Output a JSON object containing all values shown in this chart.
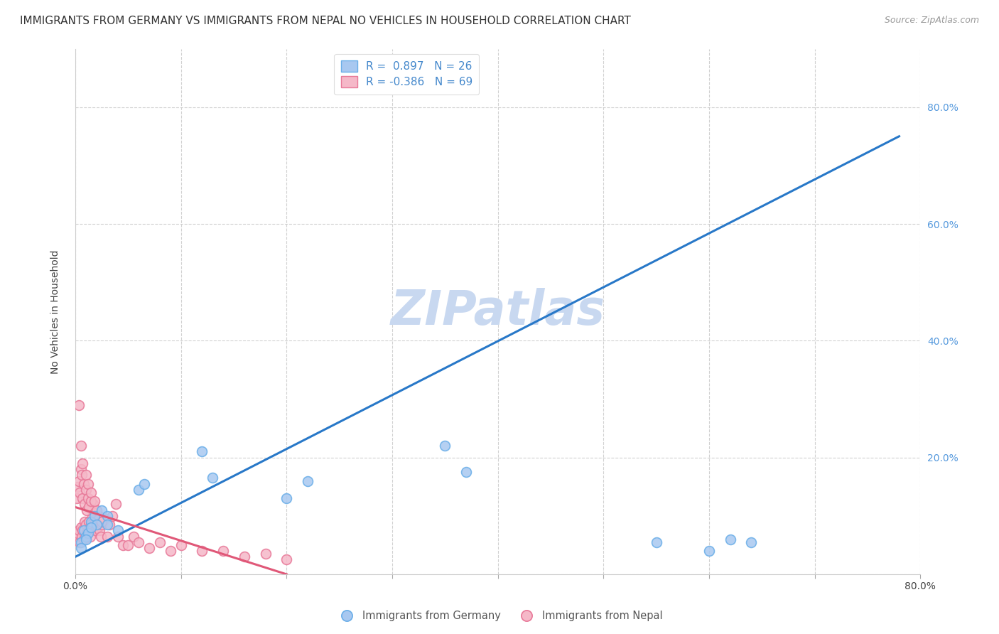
{
  "title": "IMMIGRANTS FROM GERMANY VS IMMIGRANTS FROM NEPAL NO VEHICLES IN HOUSEHOLD CORRELATION CHART",
  "source": "Source: ZipAtlas.com",
  "ylabel": "No Vehicles in Household",
  "xlim": [
    0.0,
    0.8
  ],
  "ylim": [
    0.0,
    0.9
  ],
  "xtick_pos": [
    0.0,
    0.1,
    0.2,
    0.3,
    0.4,
    0.5,
    0.6,
    0.7,
    0.8
  ],
  "xticklabels": [
    "0.0%",
    "",
    "",
    "",
    "",
    "",
    "",
    "",
    "80.0%"
  ],
  "ytick_pos": [
    0.0,
    0.2,
    0.4,
    0.6,
    0.8
  ],
  "yticklabels": [
    "",
    "20.0%",
    "40.0%",
    "60.0%",
    "80.0%"
  ],
  "germany_color": "#a8c8f0",
  "germany_edge": "#6aaee8",
  "nepal_color": "#f5b8c8",
  "nepal_edge": "#e87898",
  "trend_germany_color": "#2878c8",
  "trend_nepal_color": "#e05878",
  "R_germany": 0.897,
  "N_germany": 26,
  "R_nepal": -0.386,
  "N_nepal": 69,
  "legend_label_germany": "Immigrants from Germany",
  "legend_label_nepal": "Immigrants from Nepal",
  "watermark": "ZIPatlas",
  "watermark_color": "#c8d8f0",
  "germany_x": [
    0.005,
    0.008,
    0.01,
    0.012,
    0.015,
    0.018,
    0.02,
    0.025,
    0.03,
    0.06,
    0.065,
    0.12,
    0.13,
    0.2,
    0.22,
    0.35,
    0.37,
    0.55,
    0.6,
    0.62,
    0.64,
    0.005,
    0.01,
    0.015,
    0.03,
    0.04
  ],
  "germany_y": [
    0.055,
    0.075,
    0.065,
    0.07,
    0.09,
    0.1,
    0.085,
    0.11,
    0.1,
    0.145,
    0.155,
    0.21,
    0.165,
    0.13,
    0.16,
    0.22,
    0.175,
    0.055,
    0.04,
    0.06,
    0.055,
    0.045,
    0.06,
    0.08,
    0.085,
    0.075
  ],
  "nepal_x": [
    0.001,
    0.002,
    0.003,
    0.004,
    0.005,
    0.006,
    0.007,
    0.008,
    0.009,
    0.01,
    0.011,
    0.012,
    0.013,
    0.014,
    0.015,
    0.016,
    0.017,
    0.018,
    0.019,
    0.02,
    0.021,
    0.022,
    0.023,
    0.024,
    0.025,
    0.028,
    0.03,
    0.032,
    0.035,
    0.038,
    0.04,
    0.045,
    0.05,
    0.055,
    0.06,
    0.07,
    0.08,
    0.09,
    0.1,
    0.12,
    0.14,
    0.16,
    0.18,
    0.2,
    0.001,
    0.002,
    0.003,
    0.004,
    0.005,
    0.006,
    0.007,
    0.008,
    0.009,
    0.01,
    0.011,
    0.012,
    0.013,
    0.015,
    0.018,
    0.02,
    0.022,
    0.025,
    0.003,
    0.005,
    0.007,
    0.01,
    0.012,
    0.015,
    0.018
  ],
  "nepal_y": [
    0.065,
    0.07,
    0.075,
    0.055,
    0.08,
    0.065,
    0.075,
    0.06,
    0.09,
    0.085,
    0.07,
    0.075,
    0.09,
    0.065,
    0.085,
    0.1,
    0.12,
    0.095,
    0.075,
    0.085,
    0.08,
    0.1,
    0.075,
    0.065,
    0.085,
    0.095,
    0.065,
    0.085,
    0.1,
    0.12,
    0.065,
    0.05,
    0.05,
    0.065,
    0.055,
    0.045,
    0.055,
    0.04,
    0.05,
    0.04,
    0.04,
    0.03,
    0.035,
    0.025,
    0.13,
    0.15,
    0.16,
    0.14,
    0.18,
    0.17,
    0.13,
    0.155,
    0.12,
    0.145,
    0.11,
    0.13,
    0.115,
    0.125,
    0.105,
    0.11,
    0.095,
    0.09,
    0.29,
    0.22,
    0.19,
    0.17,
    0.155,
    0.14,
    0.125
  ],
  "trend_germany_x0": 0.0,
  "trend_germany_y0": 0.03,
  "trend_germany_x1": 0.78,
  "trend_germany_y1": 0.75,
  "trend_nepal_x0": 0.0,
  "trend_nepal_y0": 0.115,
  "trend_nepal_x1": 0.2,
  "trend_nepal_y1": 0.0,
  "title_fontsize": 11,
  "axis_label_fontsize": 10,
  "tick_fontsize": 10,
  "dot_size": 100
}
